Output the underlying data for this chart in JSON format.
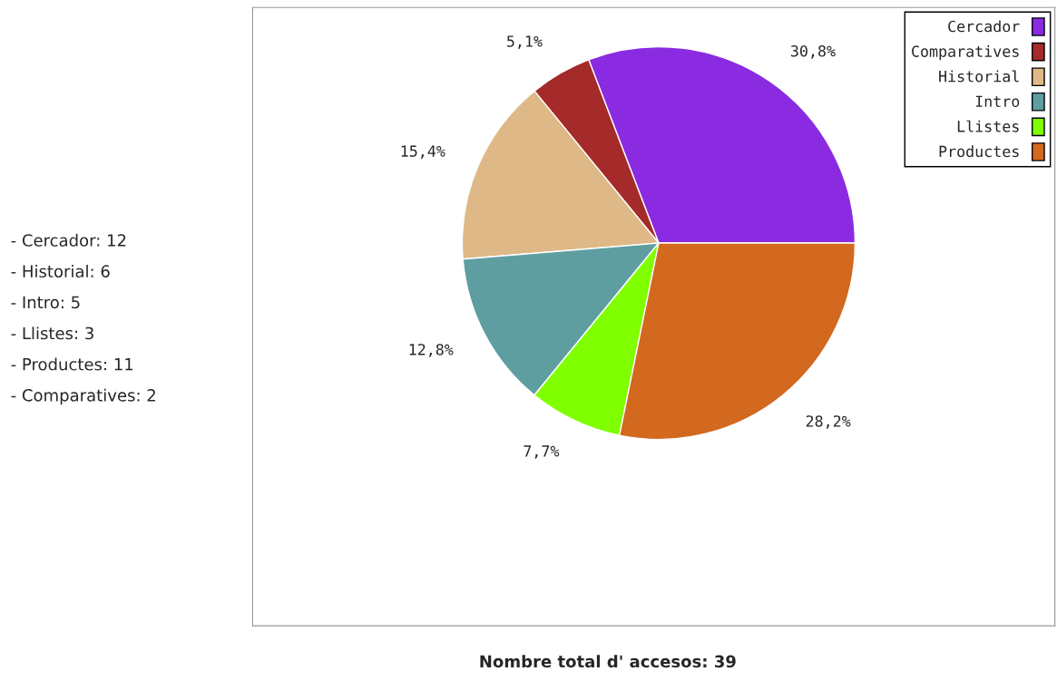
{
  "chart_data": {
    "type": "pie",
    "categories": [
      "Cercador",
      "Comparatives",
      "Historial",
      "Intro",
      "Llistes",
      "Productes"
    ],
    "values": [
      30.8,
      5.1,
      15.4,
      12.8,
      7.7,
      28.2
    ],
    "value_labels": [
      "30,8%",
      "5,1%",
      "15,4%",
      "12,8%",
      "7,7%",
      "28,2%"
    ],
    "colors": [
      "#8a2be2",
      "#a52a2a",
      "#deb887",
      "#5f9ea0",
      "#7fff00",
      "#d2691e"
    ],
    "legend": "top right",
    "annotations": [
      "- Cercador: 12",
      "- Historial: 6",
      "- Intro: 5",
      "- Llistes: 3",
      "- Productes: 11",
      "- Comparatives: 2",
      "Nombre total d' accesos: 39"
    ]
  }
}
